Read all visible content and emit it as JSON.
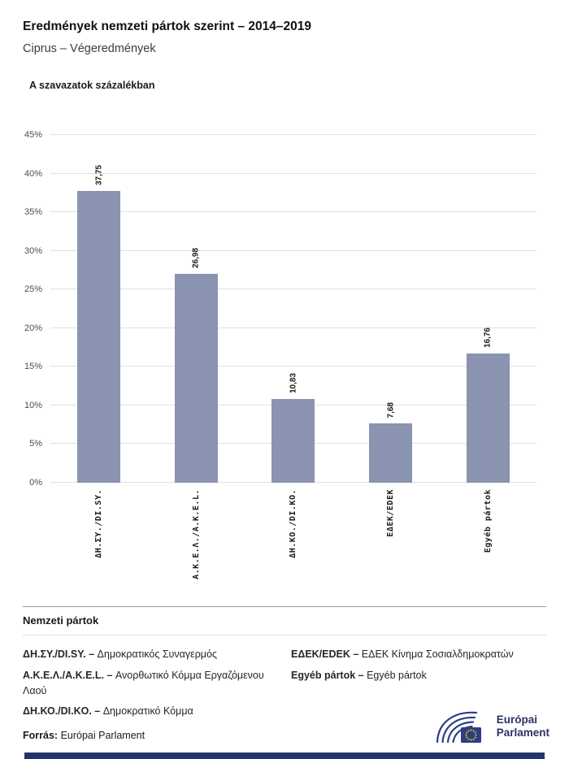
{
  "header": {
    "title": "Eredmények nemzeti pártok szerint – 2014–2019",
    "subtitle": "Ciprus – Végeredmények"
  },
  "chart_data": {
    "type": "bar",
    "title": "A szavazatok százalékban",
    "categories": [
      "ΔΗ.ΣΥ./DI.SY.",
      "Α.Κ.Ε.Λ./A.K.E.L.",
      "ΔΗ.ΚΟ./DI.KO.",
      "ΕΔΕΚ/EDEK",
      "Egyéb pártok"
    ],
    "values": [
      37.75,
      26.98,
      10.83,
      7.68,
      16.76
    ],
    "value_labels": [
      "37,75",
      "26,98",
      "10,83",
      "7,68",
      "16,76"
    ],
    "xlabel": "",
    "ylabel": "",
    "ylim": [
      0,
      45
    ],
    "ytick_step": 5,
    "ytick_suffix": "%",
    "bar_color": "#8a93af",
    "grid": true,
    "legend_position": "none"
  },
  "legend": {
    "title": "Nemzeti pártok",
    "columns": [
      [
        {
          "abbr": "ΔΗ.ΣΥ./DI.SY. –",
          "name": "Δημοκρατικός Συναγερμός"
        },
        {
          "abbr": "Α.Κ.Ε.Λ./A.K.E.L. –",
          "name": "Ανορθωτικό Κόμμα Εργαζόμενου Λαού"
        },
        {
          "abbr": "ΔΗ.ΚΟ./DI.KO. –",
          "name": "Δημοκρατικό Κόμμα"
        }
      ],
      [
        {
          "abbr": "ΕΔΕΚ/EDEK –",
          "name": "ΕΔΕΚ Κίνημα Σοσιαλδημοκρατών"
        },
        {
          "abbr": "Egyéb pártok –",
          "name": "Egyéb pártok"
        }
      ]
    ]
  },
  "footer": {
    "source_label": "Forrás:",
    "source_value": "Európai Parlament",
    "logo_text_line1": "Európai",
    "logo_text_line2": "Parlament"
  }
}
